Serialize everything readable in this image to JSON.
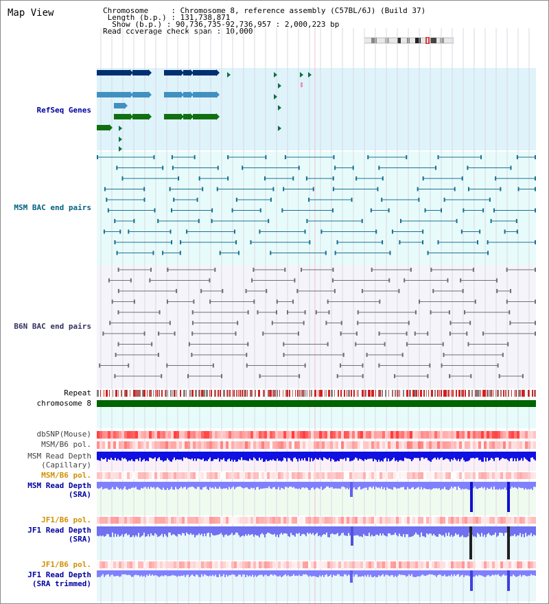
{
  "header": {
    "title": "Map View",
    "chromosome_line": "Chromosome     : Chromosome 8, reference assembly (C57BL/6J) (Build 37)",
    "length_line": " Length (b.p.) : 131,738,871",
    "show_line": "  Show (b.p.) : 90,736,735-92,736,957 : 2,000,223 bp",
    "coverage_line": "Read coverage check span : 10,000"
  },
  "tracks": {
    "refseq": "RefSeq Genes",
    "msm_bac": "MSM BAC end pairs",
    "b6n_bac": "B6N BAC end pairs",
    "repeat": "Repeat",
    "chromosome": "chromosome 8",
    "dbsnp": "dbSNP(Mouse)",
    "msm_b6_pol_1": "MSM/B6 pol.",
    "msm_depth_cap_1": "MSM Read Depth",
    "msm_depth_cap_2": "(Capillary)",
    "msm_b6_pol_2": "MSM/B6 pol.",
    "msm_depth_sra_1": "MSM Read Depth",
    "msm_depth_sra_2": "(SRA)",
    "jf1_b6_pol_1": "JF1/B6 pol.",
    "jf1_depth_sra_1": "JF1 Read Depth",
    "jf1_depth_sra_2": "(SRA)",
    "jf1_b6_pol_2": "JF1/B6 pol.",
    "jf1_depth_trim_1": "JF1 Read Depth",
    "jf1_depth_trim_2": "(SRA trimmed)"
  },
  "axis": {
    "ticks": [
      "90800000",
      "91200000",
      "91600000",
      "92000000",
      "92400000"
    ]
  },
  "colors": {
    "refseq_bg": "#dff3fb",
    "msm_bg": "#e8fbfb",
    "b6n_bg": "#f4f4fa",
    "chromosome_bar": "#006400",
    "depth_blue": "#1010e0",
    "sra_blue": "#8080ff",
    "snp_red": "#f06060"
  }
}
